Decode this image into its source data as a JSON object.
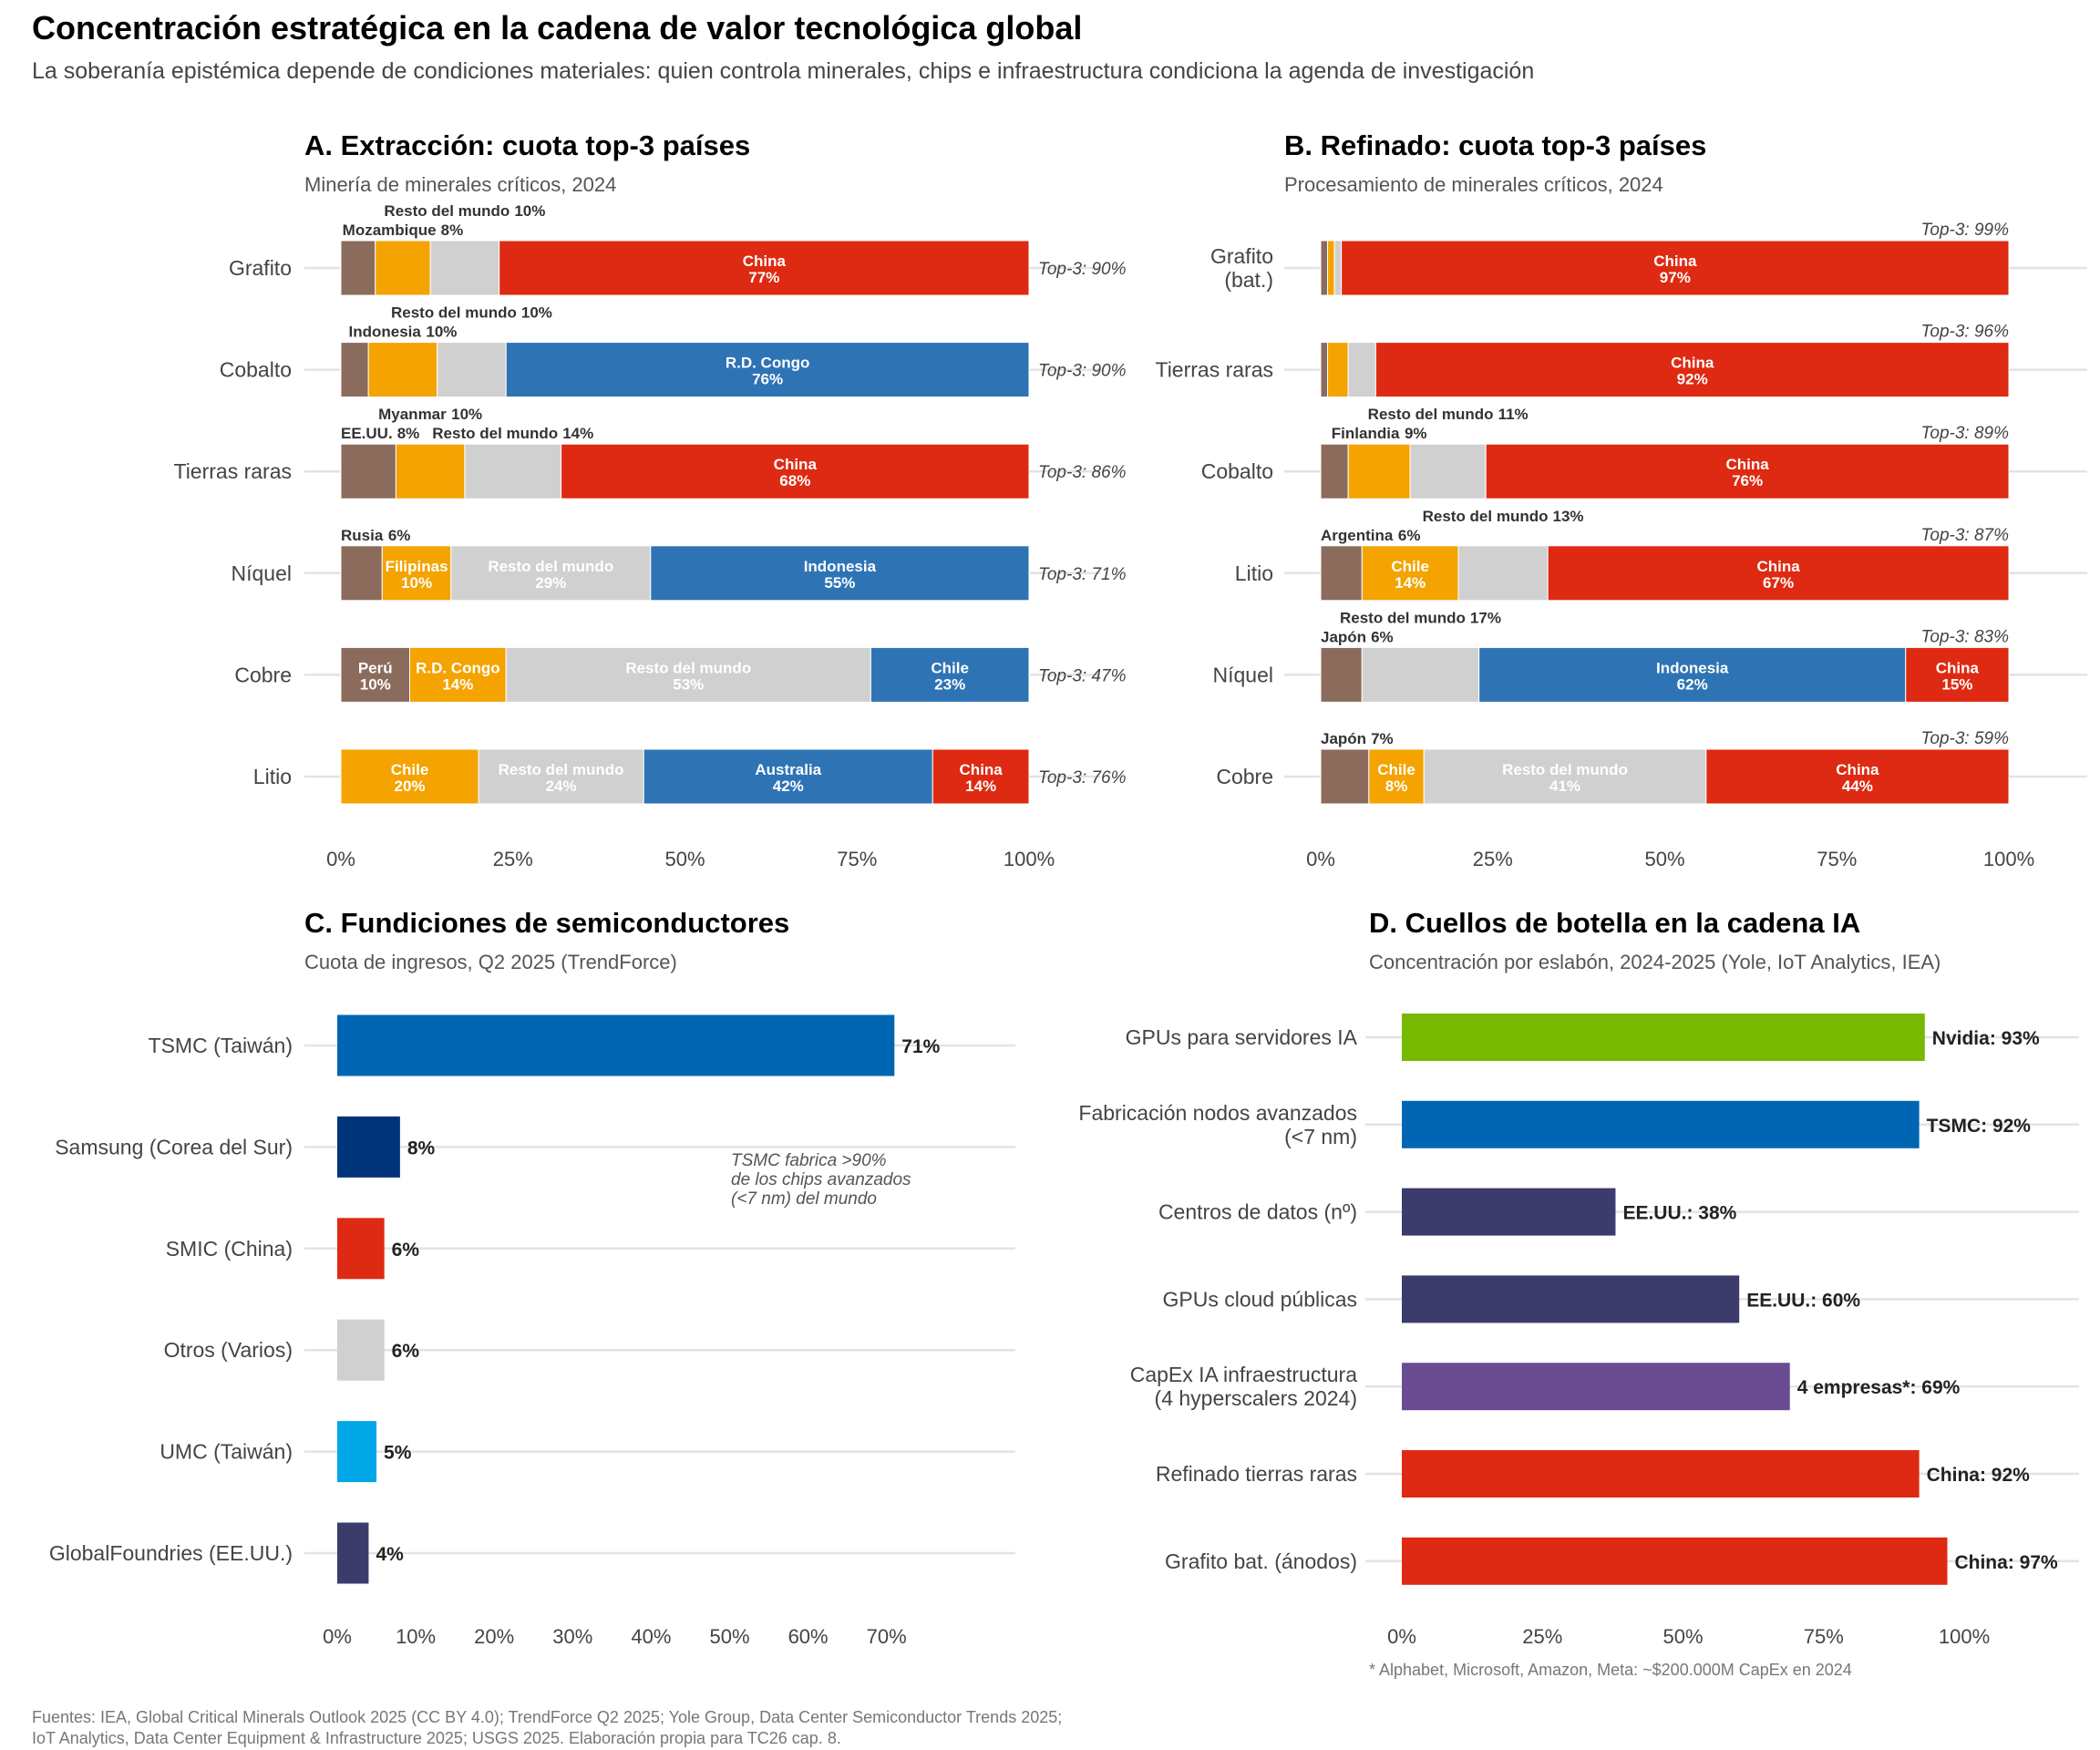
{
  "title": "Concentración estratégica en la cadena de valor tecnológica global",
  "subtitle": "La soberanía epistémica depende de condiciones materiales: quien controla minerales, chips e infraestructura condiciona la agenda de investigación",
  "footer": [
    "Fuentes: IEA, Global Critical Minerals Outlook 2025 (CC BY 4.0); TrendForce Q2 2025; Yole Group, Data Center Semiconductor Trends 2025;",
    "IoT Analytics, Data Center Equipment & Infrastructure 2025; USGS 2025. Elaboración propia para TC26 cap. 8."
  ],
  "colors": {
    "brown": "#8B6B5C",
    "orange": "#F4A300",
    "grey": "#D0D0D0",
    "red": "#DE2A12",
    "blue": "#2E74B5",
    "tsmc": "#0066B3",
    "samsung": "#00347A",
    "umc": "#00A8E8",
    "navy": "#3C3C6C",
    "green": "#76B900",
    "purple": "#6A4C93"
  },
  "chart_data": [
    {
      "id": "A",
      "type": "bar",
      "stacked": true,
      "orientation": "horizontal",
      "title": "A. Extracción: cuota top-3 países",
      "subtitle": "Minería de minerales críticos, 2024",
      "xlim": [
        0,
        100
      ],
      "xticks": [
        "0%",
        "25%",
        "50%",
        "75%",
        "100%"
      ],
      "grid": "horizontal",
      "categories": [
        {
          "label": [
            "Grafito"
          ],
          "top3": "Top-3: 90%",
          "top3_value": 90,
          "segments": [
            {
              "name": "",
              "value": 5,
              "color": "brown"
            },
            {
              "name": "Mozambique",
              "value": 8,
              "color": "orange"
            },
            {
              "name": "Resto del mundo",
              "value": 10,
              "color": "grey"
            },
            {
              "name": "China",
              "value": 77,
              "color": "red"
            }
          ]
        },
        {
          "label": [
            "Cobalto"
          ],
          "top3": "Top-3: 90%",
          "top3_value": 90,
          "segments": [
            {
              "name": "",
              "value": 4,
              "color": "brown"
            },
            {
              "name": "Indonesia",
              "value": 10,
              "color": "orange"
            },
            {
              "name": "Resto del mundo",
              "value": 10,
              "color": "grey"
            },
            {
              "name": "R.D. Congo",
              "value": 76,
              "color": "blue"
            }
          ]
        },
        {
          "label": [
            "Tierras raras"
          ],
          "top3": "Top-3: 86%",
          "top3_value": 86,
          "segments": [
            {
              "name": "EE.UU.",
              "value": 8,
              "color": "brown"
            },
            {
              "name": "Myanmar",
              "value": 10,
              "color": "orange"
            },
            {
              "name": "Resto del mundo",
              "value": 14,
              "color": "grey"
            },
            {
              "name": "China",
              "value": 68,
              "color": "red"
            }
          ]
        },
        {
          "label": [
            "Níquel"
          ],
          "top3": "Top-3: 71%",
          "top3_value": 71,
          "segments": [
            {
              "name": "Rusia",
              "value": 6,
              "color": "brown"
            },
            {
              "name": "Filipinas",
              "value": 10,
              "color": "orange"
            },
            {
              "name": "Resto del mundo",
              "value": 29,
              "color": "grey"
            },
            {
              "name": "Indonesia",
              "value": 55,
              "color": "blue"
            }
          ]
        },
        {
          "label": [
            "Cobre"
          ],
          "top3": "Top-3: 47%",
          "top3_value": 47,
          "segments": [
            {
              "name": "Perú",
              "value": 10,
              "color": "brown"
            },
            {
              "name": "R.D. Congo",
              "value": 14,
              "color": "orange"
            },
            {
              "name": "Resto del mundo",
              "value": 53,
              "color": "grey"
            },
            {
              "name": "Chile",
              "value": 23,
              "color": "blue"
            }
          ]
        },
        {
          "label": [
            "Litio"
          ],
          "top3": "Top-3: 76%",
          "top3_value": 76,
          "segments": [
            {
              "name": "Chile",
              "value": 20,
              "color": "orange"
            },
            {
              "name": "Resto del mundo",
              "value": 24,
              "color": "grey"
            },
            {
              "name": "Australia",
              "value": 42,
              "color": "blue"
            },
            {
              "name": "China",
              "value": 14,
              "color": "red"
            }
          ]
        }
      ]
    },
    {
      "id": "B",
      "type": "bar",
      "stacked": true,
      "orientation": "horizontal",
      "title": "B. Refinado: cuota top-3 países",
      "subtitle": "Procesamiento de minerales críticos, 2024",
      "xlim": [
        0,
        100
      ],
      "xticks": [
        "0%",
        "25%",
        "50%",
        "75%",
        "100%"
      ],
      "grid": "horizontal",
      "categories": [
        {
          "label": [
            "Grafito",
            "(bat.)"
          ],
          "top3": "Top-3: 99%",
          "top3_value": 99,
          "segments": [
            {
              "name": "",
              "value": 1,
              "color": "brown"
            },
            {
              "name": "",
              "value": 1,
              "color": "orange"
            },
            {
              "name": "",
              "value": 1,
              "color": "grey"
            },
            {
              "name": "China",
              "value": 97,
              "color": "red"
            }
          ]
        },
        {
          "label": [
            "Tierras raras"
          ],
          "top3": "Top-3: 96%",
          "top3_value": 96,
          "segments": [
            {
              "name": "",
              "value": 1,
              "color": "brown"
            },
            {
              "name": "",
              "value": 3,
              "color": "orange"
            },
            {
              "name": "",
              "value": 4,
              "color": "grey"
            },
            {
              "name": "China",
              "value": 92,
              "color": "red"
            }
          ]
        },
        {
          "label": [
            "Cobalto"
          ],
          "top3": "Top-3: 89%",
          "top3_value": 89,
          "segments": [
            {
              "name": "",
              "value": 4,
              "color": "brown"
            },
            {
              "name": "Finlandia",
              "value": 9,
              "color": "orange"
            },
            {
              "name": "Resto del mundo",
              "value": 11,
              "color": "grey"
            },
            {
              "name": "China",
              "value": 76,
              "color": "red"
            }
          ]
        },
        {
          "label": [
            "Litio"
          ],
          "top3": "Top-3: 87%",
          "top3_value": 87,
          "segments": [
            {
              "name": "Argentina",
              "value": 6,
              "color": "brown"
            },
            {
              "name": "Chile",
              "value": 14,
              "color": "orange"
            },
            {
              "name": "Resto del mundo",
              "value": 13,
              "color": "grey"
            },
            {
              "name": "China",
              "value": 67,
              "color": "red"
            }
          ]
        },
        {
          "label": [
            "Níquel"
          ],
          "top3": "Top-3: 83%",
          "top3_value": 83,
          "segments": [
            {
              "name": "Japón",
              "value": 6,
              "color": "brown"
            },
            {
              "name": "Resto del mundo",
              "value": 17,
              "color": "grey"
            },
            {
              "name": "Indonesia",
              "value": 62,
              "color": "blue"
            },
            {
              "name": "China",
              "value": 15,
              "color": "red"
            }
          ]
        },
        {
          "label": [
            "Cobre"
          ],
          "top3": "Top-3: 59%",
          "top3_value": 59,
          "segments": [
            {
              "name": "Japón",
              "value": 7,
              "color": "brown"
            },
            {
              "name": "Chile",
              "value": 8,
              "color": "orange"
            },
            {
              "name": "Resto del mundo",
              "value": 41,
              "color": "grey"
            },
            {
              "name": "China",
              "value": 44,
              "color": "red"
            }
          ]
        }
      ]
    },
    {
      "id": "C",
      "type": "bar",
      "orientation": "horizontal",
      "title": "C. Fundiciones de semiconductores",
      "subtitle": "Cuota de ingresos, Q2 2025 (TrendForce)",
      "xlim": [
        0,
        70
      ],
      "xticks": [
        "0%",
        "10%",
        "20%",
        "30%",
        "40%",
        "50%",
        "60%",
        "70%"
      ],
      "grid": "horizontal",
      "annotation": [
        "TSMC fabrica >90%",
        "de los chips avanzados",
        "(<7 nm) del mundo"
      ],
      "categories": [
        {
          "label": [
            "TSMC (Taiwán)"
          ],
          "value": 71,
          "text": "71%",
          "color": "tsmc"
        },
        {
          "label": [
            "Samsung (Corea del Sur)"
          ],
          "value": 8,
          "text": "8%",
          "color": "samsung"
        },
        {
          "label": [
            "SMIC (China)"
          ],
          "value": 6,
          "text": "6%",
          "color": "red"
        },
        {
          "label": [
            "Otros (Varios)"
          ],
          "value": 6,
          "text": "6%",
          "color": "grey"
        },
        {
          "label": [
            "UMC (Taiwán)"
          ],
          "value": 5,
          "text": "5%",
          "color": "umc"
        },
        {
          "label": [
            "GlobalFoundries (EE.UU.)"
          ],
          "value": 4,
          "text": "4%",
          "color": "navy"
        }
      ]
    },
    {
      "id": "D",
      "type": "bar",
      "orientation": "horizontal",
      "title": "D. Cuellos de botella en la cadena IA",
      "subtitle": "Concentración por eslabón, 2024-2025 (Yole, IoT Analytics, IEA)",
      "xlim": [
        0,
        100
      ],
      "xticks": [
        "0%",
        "25%",
        "50%",
        "75%",
        "100%"
      ],
      "grid": "horizontal",
      "note": "* Alphabet, Microsoft, Amazon, Meta: ~$200.000M CapEx en 2024",
      "categories": [
        {
          "label": [
            "GPUs para servidores IA"
          ],
          "value": 93,
          "text": "Nvidia: 93%",
          "color": "green"
        },
        {
          "label": [
            "Fabricación nodos avanzados",
            "(<7 nm)"
          ],
          "value": 92,
          "text": "TSMC: 92%",
          "color": "tsmc"
        },
        {
          "label": [
            "Centros de datos (nº)"
          ],
          "value": 38,
          "text": "EE.UU.: 38%",
          "color": "navy"
        },
        {
          "label": [
            "GPUs cloud públicas"
          ],
          "value": 60,
          "text": "EE.UU.: 60%",
          "color": "navy"
        },
        {
          "label": [
            "CapEx IA infraestructura",
            "(4 hyperscalers 2024)"
          ],
          "value": 69,
          "text": "4 empresas*: 69%",
          "color": "purple"
        },
        {
          "label": [
            "Refinado tierras raras"
          ],
          "value": 92,
          "text": "China: 92%",
          "color": "red"
        },
        {
          "label": [
            "Grafito bat. (ánodos)"
          ],
          "value": 97,
          "text": "China: 97%",
          "color": "red"
        }
      ]
    }
  ]
}
